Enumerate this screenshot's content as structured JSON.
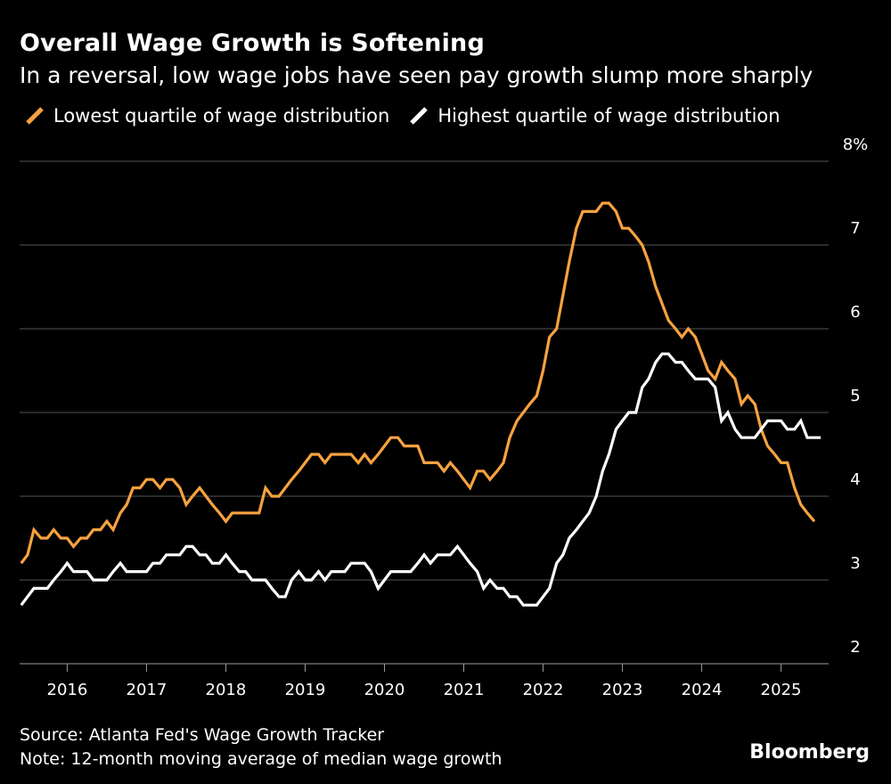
{
  "title": "Overall Wage Growth is Softening",
  "subtitle": "In a reversal, low wage jobs have seen pay growth slump more sharply",
  "legend": [
    {
      "label": "Lowest quartile of wage distribution",
      "color": "#f7a240"
    },
    {
      "label": "Highest quartile of wage distribution",
      "color": "#ffffff"
    }
  ],
  "source": "Source: Atlanta Fed's Wage Growth Tracker",
  "note": "Note: 12-month moving average of median wage growth",
  "brand": "Bloomberg",
  "colors": {
    "background": "#000000",
    "grid": "#555555",
    "text": "#ffffff"
  },
  "chart_data": {
    "type": "line",
    "title": "Overall Wage Growth is Softening",
    "xlabel": "",
    "ylabel": "",
    "ylim": [
      2,
      8
    ],
    "xlim": [
      2015.4,
      2025.6
    ],
    "y_ticks": [
      {
        "value": 8,
        "label": "8%"
      },
      {
        "value": 7,
        "label": "7"
      },
      {
        "value": 6,
        "label": "6"
      },
      {
        "value": 5,
        "label": "5"
      },
      {
        "value": 4,
        "label": "4"
      },
      {
        "value": 3,
        "label": "3"
      },
      {
        "value": 2,
        "label": "2"
      }
    ],
    "x_ticks": [
      {
        "value": 2016,
        "label": "2016"
      },
      {
        "value": 2017,
        "label": "2017"
      },
      {
        "value": 2018,
        "label": "2018"
      },
      {
        "value": 2019,
        "label": "2019"
      },
      {
        "value": 2020,
        "label": "2020"
      },
      {
        "value": 2021,
        "label": "2021"
      },
      {
        "value": 2022,
        "label": "2022"
      },
      {
        "value": 2023,
        "label": "2023"
      },
      {
        "value": 2024,
        "label": "2024"
      },
      {
        "value": 2025,
        "label": "2025"
      }
    ],
    "grid": true,
    "legend_position": "top-left",
    "series": [
      {
        "name": "Lowest quartile of wage distribution",
        "color": "#f7a240",
        "points": [
          [
            2015.42,
            3.2
          ],
          [
            2015.5,
            3.3
          ],
          [
            2015.58,
            3.6
          ],
          [
            2015.67,
            3.5
          ],
          [
            2015.75,
            3.5
          ],
          [
            2015.83,
            3.6
          ],
          [
            2015.92,
            3.5
          ],
          [
            2016.0,
            3.5
          ],
          [
            2016.08,
            3.4
          ],
          [
            2016.17,
            3.5
          ],
          [
            2016.25,
            3.5
          ],
          [
            2016.33,
            3.6
          ],
          [
            2016.42,
            3.6
          ],
          [
            2016.5,
            3.7
          ],
          [
            2016.58,
            3.6
          ],
          [
            2016.67,
            3.8
          ],
          [
            2016.75,
            3.9
          ],
          [
            2016.83,
            4.1
          ],
          [
            2016.92,
            4.1
          ],
          [
            2017.0,
            4.2
          ],
          [
            2017.08,
            4.2
          ],
          [
            2017.17,
            4.1
          ],
          [
            2017.25,
            4.2
          ],
          [
            2017.33,
            4.2
          ],
          [
            2017.42,
            4.1
          ],
          [
            2017.5,
            3.9
          ],
          [
            2017.58,
            4.0
          ],
          [
            2017.67,
            4.1
          ],
          [
            2017.75,
            4.0
          ],
          [
            2017.83,
            3.9
          ],
          [
            2017.92,
            3.8
          ],
          [
            2018.0,
            3.7
          ],
          [
            2018.08,
            3.8
          ],
          [
            2018.17,
            3.8
          ],
          [
            2018.25,
            3.8
          ],
          [
            2018.33,
            3.8
          ],
          [
            2018.42,
            3.8
          ],
          [
            2018.5,
            4.1
          ],
          [
            2018.58,
            4.0
          ],
          [
            2018.67,
            4.0
          ],
          [
            2018.75,
            4.1
          ],
          [
            2018.83,
            4.2
          ],
          [
            2018.92,
            4.3
          ],
          [
            2019.0,
            4.4
          ],
          [
            2019.08,
            4.5
          ],
          [
            2019.17,
            4.5
          ],
          [
            2019.25,
            4.4
          ],
          [
            2019.33,
            4.5
          ],
          [
            2019.42,
            4.5
          ],
          [
            2019.5,
            4.5
          ],
          [
            2019.58,
            4.5
          ],
          [
            2019.67,
            4.4
          ],
          [
            2019.75,
            4.5
          ],
          [
            2019.83,
            4.4
          ],
          [
            2019.92,
            4.5
          ],
          [
            2020.0,
            4.6
          ],
          [
            2020.08,
            4.7
          ],
          [
            2020.17,
            4.7
          ],
          [
            2020.25,
            4.6
          ],
          [
            2020.33,
            4.6
          ],
          [
            2020.42,
            4.6
          ],
          [
            2020.5,
            4.4
          ],
          [
            2020.58,
            4.4
          ],
          [
            2020.67,
            4.4
          ],
          [
            2020.75,
            4.3
          ],
          [
            2020.83,
            4.4
          ],
          [
            2020.92,
            4.3
          ],
          [
            2021.0,
            4.2
          ],
          [
            2021.08,
            4.1
          ],
          [
            2021.17,
            4.3
          ],
          [
            2021.25,
            4.3
          ],
          [
            2021.33,
            4.2
          ],
          [
            2021.42,
            4.3
          ],
          [
            2021.5,
            4.4
          ],
          [
            2021.58,
            4.7
          ],
          [
            2021.67,
            4.9
          ],
          [
            2021.75,
            5.0
          ],
          [
            2021.83,
            5.1
          ],
          [
            2021.92,
            5.2
          ],
          [
            2022.0,
            5.5
          ],
          [
            2022.08,
            5.9
          ],
          [
            2022.17,
            6.0
          ],
          [
            2022.25,
            6.4
          ],
          [
            2022.33,
            6.8
          ],
          [
            2022.42,
            7.2
          ],
          [
            2022.5,
            7.4
          ],
          [
            2022.58,
            7.4
          ],
          [
            2022.67,
            7.4
          ],
          [
            2022.75,
            7.5
          ],
          [
            2022.83,
            7.5
          ],
          [
            2022.92,
            7.4
          ],
          [
            2023.0,
            7.2
          ],
          [
            2023.08,
            7.2
          ],
          [
            2023.17,
            7.1
          ],
          [
            2023.25,
            7.0
          ],
          [
            2023.33,
            6.8
          ],
          [
            2023.42,
            6.5
          ],
          [
            2023.5,
            6.3
          ],
          [
            2023.58,
            6.1
          ],
          [
            2023.67,
            6.0
          ],
          [
            2023.75,
            5.9
          ],
          [
            2023.83,
            6.0
          ],
          [
            2023.92,
            5.9
          ],
          [
            2024.0,
            5.7
          ],
          [
            2024.08,
            5.5
          ],
          [
            2024.17,
            5.4
          ],
          [
            2024.25,
            5.6
          ],
          [
            2024.33,
            5.5
          ],
          [
            2024.42,
            5.4
          ],
          [
            2024.5,
            5.1
          ],
          [
            2024.58,
            5.2
          ],
          [
            2024.67,
            5.1
          ],
          [
            2024.75,
            4.8
          ],
          [
            2024.83,
            4.6
          ],
          [
            2024.92,
            4.5
          ],
          [
            2025.0,
            4.4
          ],
          [
            2025.08,
            4.4
          ],
          [
            2025.17,
            4.1
          ],
          [
            2025.25,
            3.9
          ],
          [
            2025.33,
            3.8
          ],
          [
            2025.42,
            3.7
          ]
        ]
      },
      {
        "name": "Highest quartile of wage distribution",
        "color": "#ffffff",
        "points": [
          [
            2015.42,
            2.7
          ],
          [
            2015.5,
            2.8
          ],
          [
            2015.58,
            2.9
          ],
          [
            2015.67,
            2.9
          ],
          [
            2015.75,
            2.9
          ],
          [
            2015.83,
            3.0
          ],
          [
            2015.92,
            3.1
          ],
          [
            2016.0,
            3.2
          ],
          [
            2016.08,
            3.1
          ],
          [
            2016.17,
            3.1
          ],
          [
            2016.25,
            3.1
          ],
          [
            2016.33,
            3.0
          ],
          [
            2016.42,
            3.0
          ],
          [
            2016.5,
            3.0
          ],
          [
            2016.58,
            3.1
          ],
          [
            2016.67,
            3.2
          ],
          [
            2016.75,
            3.1
          ],
          [
            2016.83,
            3.1
          ],
          [
            2016.92,
            3.1
          ],
          [
            2017.0,
            3.1
          ],
          [
            2017.08,
            3.2
          ],
          [
            2017.17,
            3.2
          ],
          [
            2017.25,
            3.3
          ],
          [
            2017.33,
            3.3
          ],
          [
            2017.42,
            3.3
          ],
          [
            2017.5,
            3.4
          ],
          [
            2017.58,
            3.4
          ],
          [
            2017.67,
            3.3
          ],
          [
            2017.75,
            3.3
          ],
          [
            2017.83,
            3.2
          ],
          [
            2017.92,
            3.2
          ],
          [
            2018.0,
            3.3
          ],
          [
            2018.08,
            3.2
          ],
          [
            2018.17,
            3.1
          ],
          [
            2018.25,
            3.1
          ],
          [
            2018.33,
            3.0
          ],
          [
            2018.42,
            3.0
          ],
          [
            2018.5,
            3.0
          ],
          [
            2018.58,
            2.9
          ],
          [
            2018.67,
            2.8
          ],
          [
            2018.75,
            2.8
          ],
          [
            2018.83,
            3.0
          ],
          [
            2018.92,
            3.1
          ],
          [
            2019.0,
            3.0
          ],
          [
            2019.08,
            3.0
          ],
          [
            2019.17,
            3.1
          ],
          [
            2019.25,
            3.0
          ],
          [
            2019.33,
            3.1
          ],
          [
            2019.42,
            3.1
          ],
          [
            2019.5,
            3.1
          ],
          [
            2019.58,
            3.2
          ],
          [
            2019.67,
            3.2
          ],
          [
            2019.75,
            3.2
          ],
          [
            2019.83,
            3.1
          ],
          [
            2019.92,
            2.9
          ],
          [
            2020.0,
            3.0
          ],
          [
            2020.08,
            3.1
          ],
          [
            2020.17,
            3.1
          ],
          [
            2020.25,
            3.1
          ],
          [
            2020.33,
            3.1
          ],
          [
            2020.42,
            3.2
          ],
          [
            2020.5,
            3.3
          ],
          [
            2020.58,
            3.2
          ],
          [
            2020.67,
            3.3
          ],
          [
            2020.75,
            3.3
          ],
          [
            2020.83,
            3.3
          ],
          [
            2020.92,
            3.4
          ],
          [
            2021.0,
            3.3
          ],
          [
            2021.08,
            3.2
          ],
          [
            2021.17,
            3.1
          ],
          [
            2021.25,
            2.9
          ],
          [
            2021.33,
            3.0
          ],
          [
            2021.42,
            2.9
          ],
          [
            2021.5,
            2.9
          ],
          [
            2021.58,
            2.8
          ],
          [
            2021.67,
            2.8
          ],
          [
            2021.75,
            2.7
          ],
          [
            2021.83,
            2.7
          ],
          [
            2021.92,
            2.7
          ],
          [
            2022.0,
            2.8
          ],
          [
            2022.08,
            2.9
          ],
          [
            2022.17,
            3.2
          ],
          [
            2022.25,
            3.3
          ],
          [
            2022.33,
            3.5
          ],
          [
            2022.42,
            3.6
          ],
          [
            2022.5,
            3.7
          ],
          [
            2022.58,
            3.8
          ],
          [
            2022.67,
            4.0
          ],
          [
            2022.75,
            4.3
          ],
          [
            2022.83,
            4.5
          ],
          [
            2022.92,
            4.8
          ],
          [
            2023.0,
            4.9
          ],
          [
            2023.08,
            5.0
          ],
          [
            2023.17,
            5.0
          ],
          [
            2023.25,
            5.3
          ],
          [
            2023.33,
            5.4
          ],
          [
            2023.42,
            5.6
          ],
          [
            2023.5,
            5.7
          ],
          [
            2023.58,
            5.7
          ],
          [
            2023.67,
            5.6
          ],
          [
            2023.75,
            5.6
          ],
          [
            2023.83,
            5.5
          ],
          [
            2023.92,
            5.4
          ],
          [
            2024.0,
            5.4
          ],
          [
            2024.08,
            5.4
          ],
          [
            2024.17,
            5.3
          ],
          [
            2024.25,
            4.9
          ],
          [
            2024.33,
            5.0
          ],
          [
            2024.42,
            4.8
          ],
          [
            2024.5,
            4.7
          ],
          [
            2024.58,
            4.7
          ],
          [
            2024.67,
            4.7
          ],
          [
            2024.75,
            4.8
          ],
          [
            2024.83,
            4.9
          ],
          [
            2024.92,
            4.9
          ],
          [
            2025.0,
            4.9
          ],
          [
            2025.08,
            4.8
          ],
          [
            2025.17,
            4.8
          ],
          [
            2025.25,
            4.9
          ],
          [
            2025.33,
            4.7
          ],
          [
            2025.42,
            4.7
          ],
          [
            2025.5,
            4.7
          ]
        ]
      }
    ]
  }
}
